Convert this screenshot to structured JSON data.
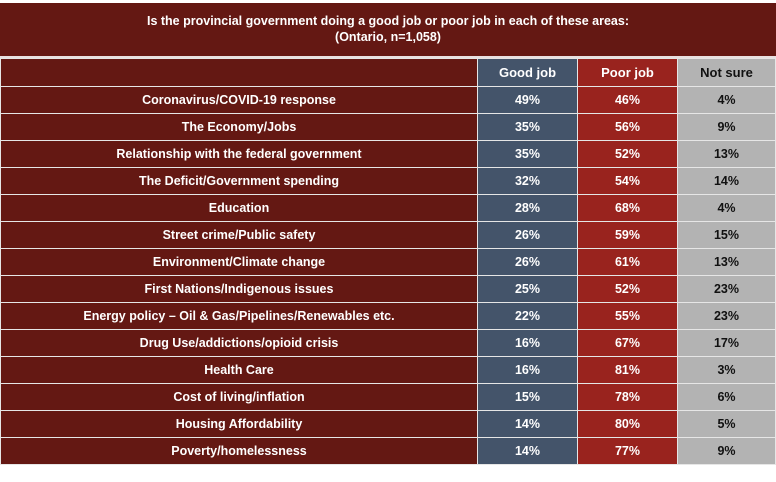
{
  "chart_data": {
    "type": "table",
    "title": "Is the provincial government doing a good job or poor job in each of these areas:",
    "subtitle": "(Ontario, n=1,058)",
    "columns": [
      "Good job",
      "Poor job",
      "Not sure"
    ],
    "colors": {
      "label_bg": "#641813",
      "good": "#44546a",
      "poor": "#99231e",
      "not_sure": "#b3b3b3"
    },
    "rows": [
      {
        "label": "Coronavirus/COVID-19 response",
        "values": [
          "49%",
          "46%",
          "4%"
        ]
      },
      {
        "label": "The Economy/Jobs",
        "values": [
          "35%",
          "56%",
          "9%"
        ]
      },
      {
        "label": "Relationship with the federal government",
        "values": [
          "35%",
          "52%",
          "13%"
        ]
      },
      {
        "label": "The Deficit/Government spending",
        "values": [
          "32%",
          "54%",
          "14%"
        ]
      },
      {
        "label": "Education",
        "values": [
          "28%",
          "68%",
          "4%"
        ]
      },
      {
        "label": "Street crime/Public safety",
        "values": [
          "26%",
          "59%",
          "15%"
        ]
      },
      {
        "label": "Environment/Climate change",
        "values": [
          "26%",
          "61%",
          "13%"
        ]
      },
      {
        "label": "First Nations/Indigenous issues",
        "values": [
          "25%",
          "52%",
          "23%"
        ]
      },
      {
        "label": "Energy policy – Oil & Gas/Pipelines/Renewables etc.",
        "values": [
          "22%",
          "55%",
          "23%"
        ]
      },
      {
        "label": "Drug Use/addictions/opioid crisis",
        "values": [
          "16%",
          "67%",
          "17%"
        ]
      },
      {
        "label": "Health Care",
        "values": [
          "16%",
          "81%",
          "3%"
        ]
      },
      {
        "label": "Cost of living/inflation",
        "values": [
          "15%",
          "78%",
          "6%"
        ]
      },
      {
        "label": "Housing Affordability",
        "values": [
          "14%",
          "80%",
          "5%"
        ]
      },
      {
        "label": "Poverty/homelessness",
        "values": [
          "14%",
          "77%",
          "9%"
        ]
      }
    ]
  }
}
